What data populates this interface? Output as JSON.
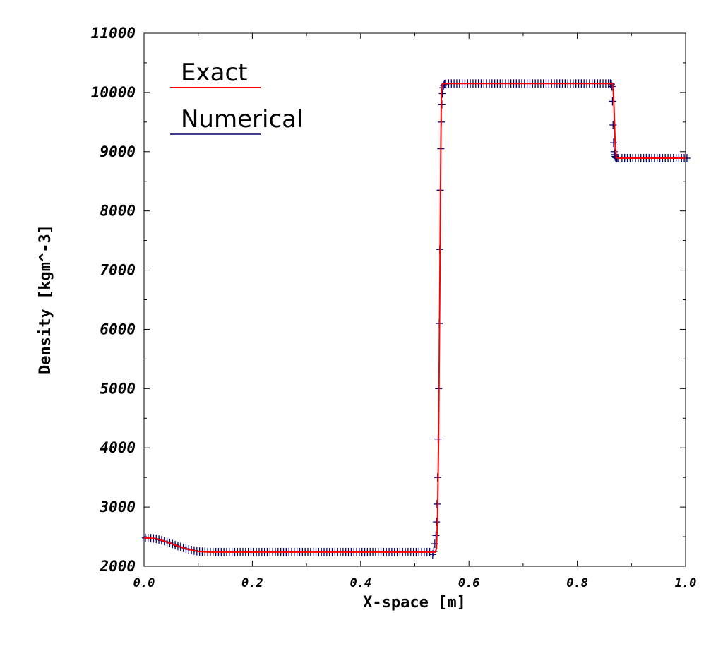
{
  "chart_data": {
    "type": "line",
    "title": "",
    "xlabel": "X-space [m]",
    "ylabel": "Density [kgm^-3]",
    "xlim": [
      0.0,
      1.0
    ],
    "ylim": [
      2000,
      11000
    ],
    "x_ticks": [
      "0.0",
      "0.2",
      "0.4",
      "0.6",
      "0.8",
      "1.0"
    ],
    "y_ticks": [
      "2000",
      "3000",
      "4000",
      "5000",
      "6000",
      "7000",
      "8000",
      "9000",
      "10000",
      "11000"
    ],
    "grid": false,
    "legend_position": "top-left",
    "series": [
      {
        "name": "Exact",
        "style": "line",
        "color": "#ff0000",
        "x": [
          0.0,
          0.02,
          0.04,
          0.06,
          0.08,
          0.1,
          0.12,
          0.2,
          0.4,
          0.538,
          0.54,
          0.542,
          0.544,
          0.546,
          0.548,
          0.549,
          0.551,
          0.553,
          0.556,
          0.7,
          0.8,
          0.865,
          0.866,
          0.868,
          0.87,
          0.872,
          0.875,
          0.9,
          1.0
        ],
        "y": [
          2480,
          2470,
          2420,
          2350,
          2290,
          2250,
          2240,
          2240,
          2240,
          2240,
          2300,
          2800,
          4200,
          6500,
          9000,
          10000,
          10140,
          10150,
          10150,
          10150,
          10150,
          10150,
          10100,
          9700,
          9100,
          8900,
          8890,
          8890,
          8890
        ]
      },
      {
        "name": "Numerical",
        "style": "markers",
        "marker": "+",
        "color": "#00006e",
        "x": [
          0.533,
          0.535,
          0.537,
          0.539,
          0.54,
          0.541,
          0.542,
          0.543,
          0.544,
          0.545,
          0.546,
          0.547,
          0.548,
          0.549,
          0.55,
          0.551,
          0.552,
          0.553,
          0.555,
          0.557,
          0.861,
          0.863,
          0.864,
          0.865,
          0.866,
          0.867,
          0.868,
          0.869,
          0.87,
          0.871,
          0.873,
          0.875
        ],
        "y": [
          2200,
          2250,
          2380,
          2520,
          2750,
          3050,
          3500,
          4150,
          5000,
          6100,
          7350,
          8350,
          9050,
          9500,
          9800,
          9980,
          10080,
          10120,
          10140,
          10150,
          10150,
          10140,
          10100,
          9850,
          9450,
          9150,
          9000,
          8950,
          8920,
          8900,
          8890,
          8890
        ]
      }
    ]
  }
}
